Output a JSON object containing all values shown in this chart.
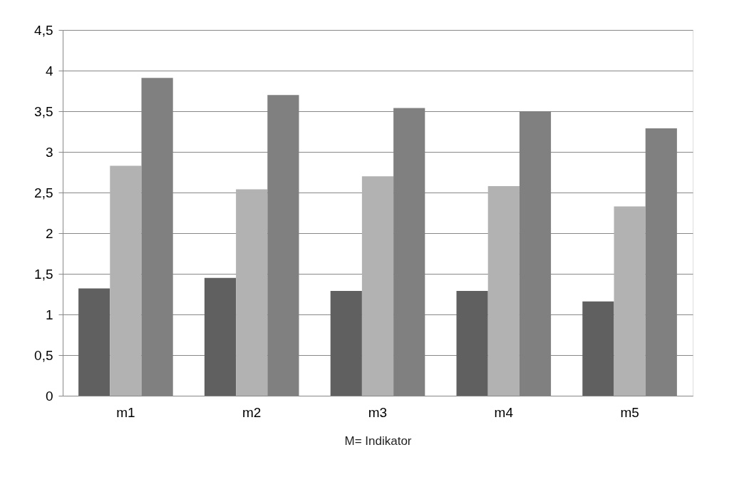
{
  "chart_data": {
    "type": "bar",
    "xlabel": "M= Indikator",
    "categories": [
      "m1",
      "m2",
      "m3",
      "m4",
      "m5"
    ],
    "series": [
      {
        "color": "#606060",
        "values": [
          1.32,
          1.45,
          1.29,
          1.29,
          1.16
        ]
      },
      {
        "color": "#b2b2b2",
        "values": [
          2.83,
          2.54,
          2.7,
          2.58,
          2.33
        ]
      },
      {
        "color": "#808080",
        "values": [
          3.91,
          3.7,
          3.54,
          3.5,
          3.29
        ]
      }
    ],
    "ylim": [
      0,
      4.5
    ],
    "yticks": [
      0,
      {
        "value": 0.5,
        "label": "0,5"
      },
      1,
      {
        "value": 1.5,
        "label": "1,5"
      },
      2,
      {
        "value": 2.5,
        "label": "2,5"
      },
      3,
      {
        "value": 3.5,
        "label": "3,5"
      },
      4,
      {
        "value": 4.5,
        "label": "4,5"
      }
    ],
    "grid": "y",
    "legend": false
  }
}
